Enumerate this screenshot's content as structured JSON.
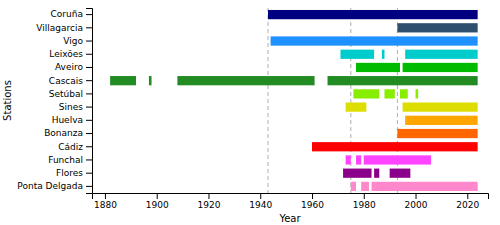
{
  "chart_data": {
    "type": "timeline",
    "xlabel": "Year",
    "ylabel": "Stations",
    "categories": [
      "Coruña",
      "Villagarcia",
      "Vigo",
      "Leixões",
      "Aveiro",
      "Cascais",
      "Setúbal",
      "Sines",
      "Huelva",
      "Bonanza",
      "Cádiz",
      "Funchal",
      "Flores",
      "Ponta Delgada"
    ],
    "segments": [
      [
        [
          1943,
          2024
        ]
      ],
      [
        [
          1993,
          2024
        ]
      ],
      [
        [
          1944,
          2024
        ]
      ],
      [
        [
          1971,
          1984
        ],
        [
          1987,
          1988
        ],
        [
          1996,
          2024
        ]
      ],
      [
        [
          1977,
          1994
        ],
        [
          1995,
          2024
        ]
      ],
      [
        [
          1882,
          1892
        ],
        [
          1897,
          1898
        ],
        [
          1908,
          1961
        ],
        [
          1966,
          2024
        ]
      ],
      [
        [
          1976,
          1986
        ],
        [
          1988,
          1992
        ],
        [
          1994,
          1997
        ],
        [
          2000,
          2001
        ]
      ],
      [
        [
          1973,
          1981
        ],
        [
          1995,
          2024
        ]
      ],
      [
        [
          1996,
          2024
        ]
      ],
      [
        [
          1993,
          2024
        ]
      ],
      [
        [
          1960,
          2024
        ]
      ],
      [
        [
          1973,
          1975
        ],
        [
          1977,
          1979
        ],
        [
          1980,
          2006
        ]
      ],
      [
        [
          1972,
          1983
        ],
        [
          1984,
          1986
        ],
        [
          1990,
          1998
        ]
      ],
      [
        [
          1975,
          1977
        ],
        [
          1979,
          1982
        ],
        [
          1983,
          2024
        ]
      ]
    ],
    "colors": [
      "#000080",
      "#2f4f6f",
      "#1e90ff",
      "#00CCCC",
      "#00BB00",
      "#228B22",
      "#88EE00",
      "#DDDD00",
      "#FFA500",
      "#FF6600",
      "#FF0000",
      "#FF44FF",
      "#8B008B",
      "#FF88CC"
    ],
    "reference_lines": [
      1943,
      1975,
      1993
    ],
    "xlim": [
      1875,
      2028
    ],
    "xticks": [
      1880,
      1900,
      1920,
      1940,
      1960,
      1980,
      2000,
      2020
    ]
  }
}
